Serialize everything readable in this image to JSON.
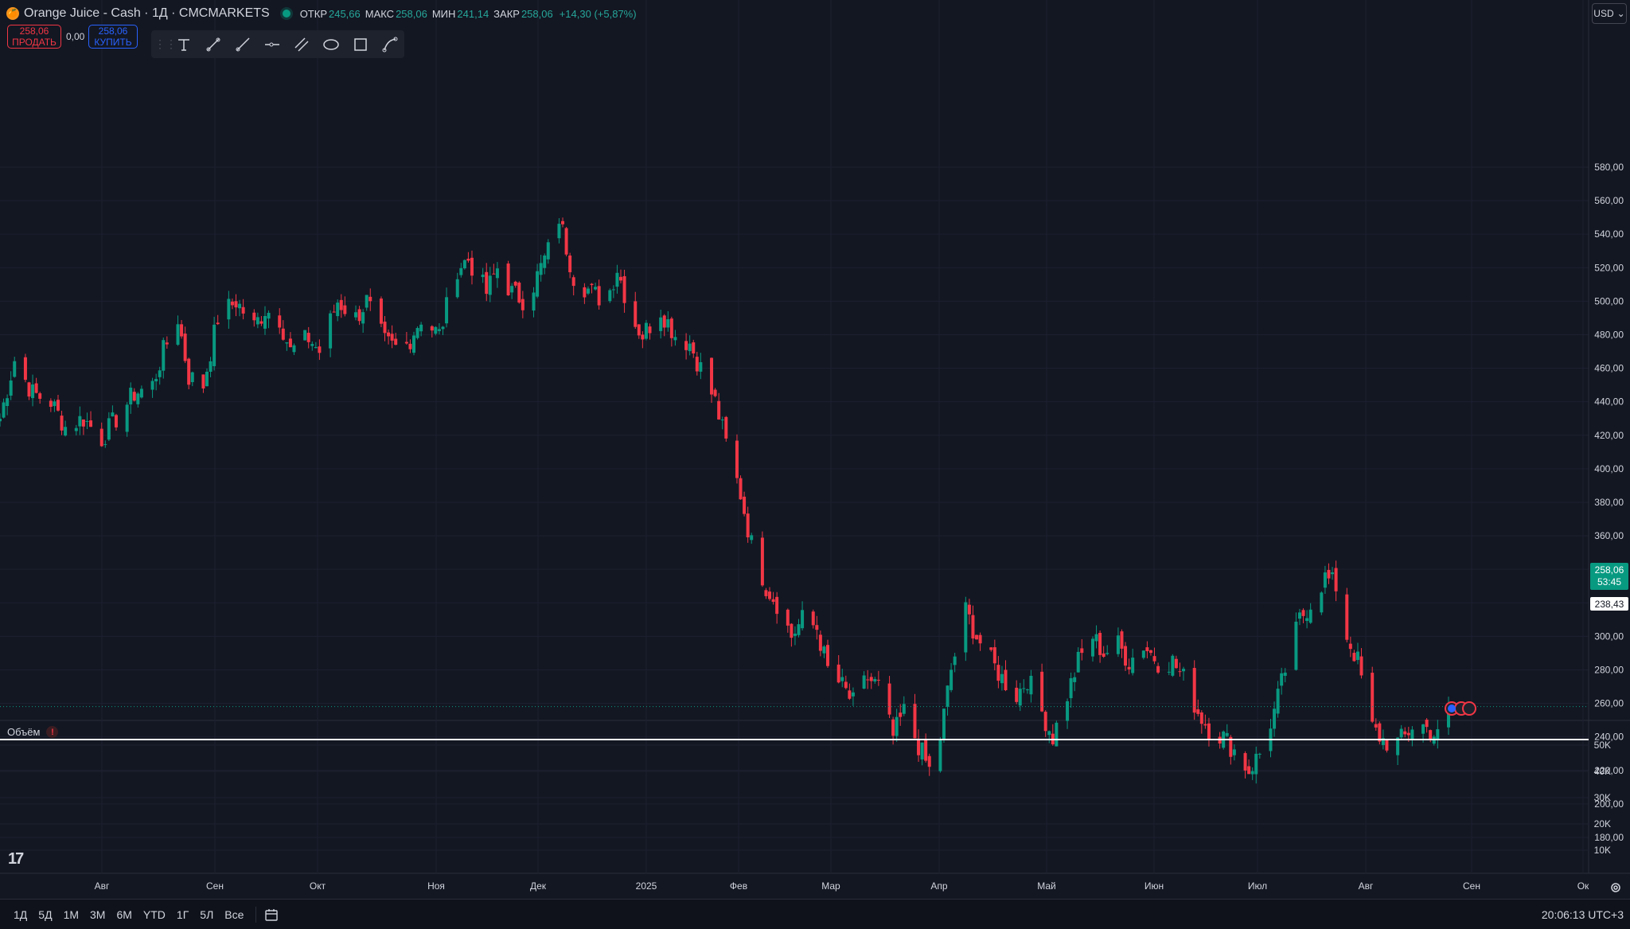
{
  "header": {
    "symbol_title": "Orange Juice - Cash · 1Д · CMCMARKETS",
    "ohlc": [
      {
        "label": "ОТКР",
        "value": "245,66"
      },
      {
        "label": "МАКС",
        "value": "258,06"
      },
      {
        "label": "МИН",
        "value": "241,14"
      },
      {
        "label": "ЗАКР",
        "value": "258,06"
      }
    ],
    "change": "+14,30 (+5,87%)"
  },
  "trade": {
    "sell_price": "258,06",
    "sell_label": "ПРОДАТЬ",
    "spread": "0,00",
    "buy_price": "258,06",
    "buy_label": "КУПИТЬ"
  },
  "currency": "USD",
  "drawing_tools": [
    "text-tool-icon",
    "trend-line-icon",
    "ray-icon",
    "horizontal-ray-icon",
    "parallel-channel-icon",
    "ellipse-icon",
    "rectangle-icon",
    "curve-icon"
  ],
  "volume_pane": {
    "title": "Объём"
  },
  "colors": {
    "up": "#089981",
    "down": "#f23645",
    "bg": "#131722",
    "grid": "#1f2330",
    "hline": "#ffffff"
  },
  "price_axis": {
    "ticks": [
      "580,00",
      "560,00",
      "540,00",
      "520,00",
      "500,00",
      "480,00",
      "460,00",
      "440,00",
      "420,00",
      "400,00",
      "380,00",
      "360,00",
      "340,00",
      "320,00",
      "300,00",
      "280,00",
      "260,00",
      "240,00",
      "220,00",
      "200,00",
      "180,00"
    ],
    "last_price": "258,06",
    "countdown": "53:45",
    "hline_price": "238,43"
  },
  "volume_axis": {
    "ticks": [
      "50K",
      "40K",
      "30K",
      "20K",
      "10K"
    ]
  },
  "time_axis": {
    "labels": [
      "Авг",
      "Сен",
      "Окт",
      "Ноя",
      "Дек",
      "2025",
      "Фев",
      "Мар",
      "Апр",
      "Май",
      "Июн",
      "Июл",
      "Авг",
      "Сен",
      "Ок"
    ]
  },
  "bottom_bar": {
    "ranges": [
      "1Д",
      "5Д",
      "1М",
      "3М",
      "6М",
      "YTD",
      "1Г",
      "5Л",
      "Все"
    ],
    "clock": "20:06:13 UTC+3"
  },
  "chart_data": {
    "type": "candlestick",
    "ylim": [
      170,
      590
    ],
    "last_price": 258.06,
    "horizontal_line": 238.43,
    "points": [
      [
        "2024-07-22",
        430
      ],
      [
        "2024-07-26",
        465
      ],
      [
        "2024-07-31",
        445
      ],
      [
        "2024-08-05",
        440
      ],
      [
        "2024-08-09",
        425
      ],
      [
        "2024-08-14",
        430
      ],
      [
        "2024-08-19",
        418
      ],
      [
        "2024-08-23",
        430
      ],
      [
        "2024-08-28",
        445
      ],
      [
        "2024-09-02",
        450
      ],
      [
        "2024-09-05",
        470
      ],
      [
        "2024-09-09",
        490
      ],
      [
        "2024-09-12",
        455
      ],
      [
        "2024-09-16",
        450
      ],
      [
        "2024-09-20",
        490
      ],
      [
        "2024-09-25",
        500
      ],
      [
        "2024-09-30",
        485
      ],
      [
        "2024-10-03",
        495
      ],
      [
        "2024-10-07",
        490
      ],
      [
        "2024-10-10",
        470
      ],
      [
        "2024-10-15",
        478
      ],
      [
        "2024-10-18",
        470
      ],
      [
        "2024-10-23",
        500
      ],
      [
        "2024-10-28",
        490
      ],
      [
        "2024-10-31",
        500
      ],
      [
        "2024-11-05",
        475
      ],
      [
        "2024-11-10",
        470
      ],
      [
        "2024-11-15",
        490
      ],
      [
        "2024-11-20",
        480
      ],
      [
        "2024-11-25",
        520
      ],
      [
        "2024-11-28",
        525
      ],
      [
        "2024-12-03",
        505
      ],
      [
        "2024-12-06",
        520
      ],
      [
        "2024-12-10",
        505
      ],
      [
        "2024-12-14",
        500
      ],
      [
        "2024-12-18",
        520
      ],
      [
        "2024-12-21",
        535
      ],
      [
        "2024-12-23",
        550
      ],
      [
        "2024-12-27",
        515
      ],
      [
        "2025-01-01",
        505
      ],
      [
        "2025-01-05",
        500
      ],
      [
        "2025-01-08",
        520
      ],
      [
        "2025-01-12",
        490
      ],
      [
        "2025-01-15",
        480
      ],
      [
        "2025-01-20",
        495
      ],
      [
        "2025-01-24",
        480
      ],
      [
        "2025-01-28",
        475
      ],
      [
        "2025-01-31",
        460
      ],
      [
        "2025-02-04",
        440
      ],
      [
        "2025-02-07",
        415
      ],
      [
        "2025-02-11",
        385
      ],
      [
        "2025-02-14",
        355
      ],
      [
        "2025-02-18",
        330
      ],
      [
        "2025-02-21",
        320
      ],
      [
        "2025-02-25",
        300
      ],
      [
        "2025-02-28",
        310
      ],
      [
        "2025-03-04",
        305
      ],
      [
        "2025-03-07",
        280
      ],
      [
        "2025-03-11",
        270
      ],
      [
        "2025-03-14",
        260
      ],
      [
        "2025-03-18",
        275
      ],
      [
        "2025-03-21",
        270
      ],
      [
        "2025-03-25",
        240
      ],
      [
        "2025-03-28",
        255
      ],
      [
        "2025-04-01",
        235
      ],
      [
        "2025-04-04",
        220
      ],
      [
        "2025-04-07",
        240
      ],
      [
        "2025-04-10",
        280
      ],
      [
        "2025-04-14",
        315
      ],
      [
        "2025-04-17",
        300
      ],
      [
        "2025-04-21",
        285
      ],
      [
        "2025-04-24",
        275
      ],
      [
        "2025-04-28",
        265
      ],
      [
        "2025-05-01",
        275
      ],
      [
        "2025-05-05",
        255
      ],
      [
        "2025-05-08",
        240
      ],
      [
        "2025-05-12",
        265
      ],
      [
        "2025-05-15",
        285
      ],
      [
        "2025-05-19",
        300
      ],
      [
        "2025-05-22",
        290
      ],
      [
        "2025-05-26",
        295
      ],
      [
        "2025-05-29",
        285
      ],
      [
        "2025-06-02",
        295
      ],
      [
        "2025-06-06",
        285
      ],
      [
        "2025-06-10",
        285
      ],
      [
        "2025-06-13",
        275
      ],
      [
        "2025-06-17",
        255
      ],
      [
        "2025-06-20",
        245
      ],
      [
        "2025-06-24",
        240
      ],
      [
        "2025-06-27",
        232
      ],
      [
        "2025-07-01",
        220
      ],
      [
        "2025-07-04",
        230
      ],
      [
        "2025-07-08",
        255
      ],
      [
        "2025-07-11",
        280
      ],
      [
        "2025-07-15",
        310
      ],
      [
        "2025-07-18",
        320
      ],
      [
        "2025-07-22",
        335
      ],
      [
        "2025-07-25",
        330
      ],
      [
        "2025-07-28",
        300
      ],
      [
        "2025-07-31",
        285
      ],
      [
        "2025-08-04",
        245
      ],
      [
        "2025-08-07",
        238
      ],
      [
        "2025-08-10",
        235
      ],
      [
        "2025-08-13",
        240
      ],
      [
        "2025-08-16",
        250
      ],
      [
        "2025-08-19",
        245
      ],
      [
        "2025-08-22",
        240
      ],
      [
        "2025-08-25",
        258.06
      ]
    ]
  }
}
